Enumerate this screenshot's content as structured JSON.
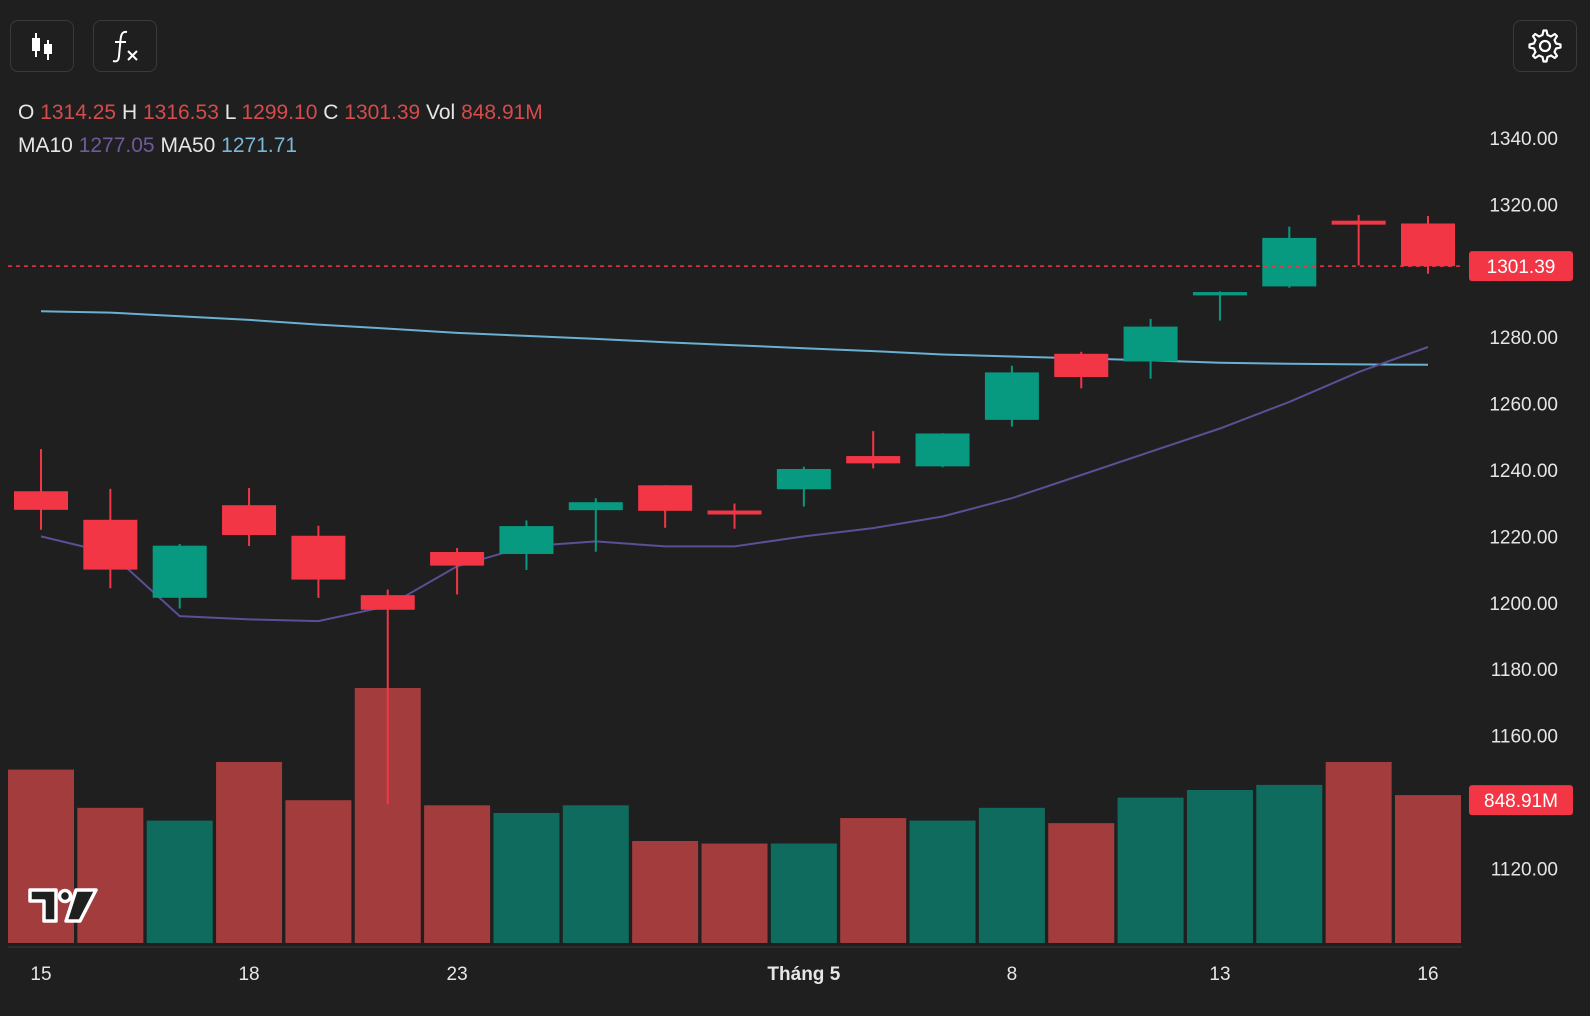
{
  "toolbar": {
    "candle_icon": "candlestick-icon",
    "fx_icon": "function-icon",
    "settings_icon": "gear-icon"
  },
  "legend": {
    "o_label": "O",
    "o_value": "1314.25",
    "h_label": "H",
    "h_value": "1316.53",
    "l_label": "L",
    "l_value": "1299.10",
    "c_label": "C",
    "c_value": "1301.39",
    "vol_label": "Vol",
    "vol_value": "848.91M",
    "ma10_label": "MA10",
    "ma10_value": "1277.05",
    "ma50_label": "MA50",
    "ma50_value": "1271.71"
  },
  "colors": {
    "background": "#1f1f1f",
    "up": "#089981",
    "down": "#f23645",
    "up_volume": "#0f6b5e",
    "down_volume": "#a33c3c",
    "ma10": "#5b4f96",
    "ma50": "#6ab0d2",
    "price_line": "#f23645",
    "axis_text": "#e6e6e6"
  },
  "chart_data": {
    "type": "candlestick",
    "y_axis_ticks": [
      "1340.00",
      "1320.00",
      "1280.00",
      "1260.00",
      "1240.00",
      "1220.00",
      "1200.00",
      "1180.00",
      "1160.00",
      "1120.00"
    ],
    "x_axis_ticks": [
      {
        "index": 0,
        "label": "15"
      },
      {
        "index": 3,
        "label": "18"
      },
      {
        "index": 6,
        "label": "23"
      },
      {
        "index": 11,
        "label": "Tháng 5"
      },
      {
        "index": 14,
        "label": "8"
      },
      {
        "index": 17,
        "label": "13"
      },
      {
        "index": 20,
        "label": "16"
      }
    ],
    "ylim": [
      1107,
      1349
    ],
    "candles": [
      {
        "o": 1233.6,
        "h": 1246.3,
        "l": 1222.0,
        "c": 1228.0
      },
      {
        "o": 1225.0,
        "h": 1234.3,
        "l": 1204.4,
        "c": 1210.0
      },
      {
        "o": 1201.5,
        "h": 1217.7,
        "l": 1198.3,
        "c": 1217.2
      },
      {
        "o": 1229.4,
        "h": 1234.6,
        "l": 1217.1,
        "c": 1220.4
      },
      {
        "o": 1220.2,
        "h": 1223.2,
        "l": 1201.5,
        "c": 1207.0
      },
      {
        "o": 1202.3,
        "h": 1204.0,
        "l": 1139.3,
        "c": 1197.9
      },
      {
        "o": 1215.3,
        "h": 1216.5,
        "l": 1202.5,
        "c": 1211.2
      },
      {
        "o": 1214.7,
        "h": 1224.8,
        "l": 1209.9,
        "c": 1223.1
      },
      {
        "o": 1227.9,
        "h": 1231.5,
        "l": 1215.4,
        "c": 1230.3
      },
      {
        "o": 1235.4,
        "h": 1235.4,
        "l": 1222.6,
        "c": 1227.7
      },
      {
        "o": 1227.8,
        "h": 1229.9,
        "l": 1222.3,
        "c": 1226.6
      },
      {
        "o": 1234.2,
        "h": 1241.0,
        "l": 1229.0,
        "c": 1240.3
      },
      {
        "o": 1244.2,
        "h": 1251.7,
        "l": 1240.5,
        "c": 1242.0
      },
      {
        "o": 1241.1,
        "h": 1251.1,
        "l": 1240.8,
        "c": 1251.0
      },
      {
        "o": 1255.1,
        "h": 1271.4,
        "l": 1253.1,
        "c": 1269.4
      },
      {
        "o": 1275.0,
        "h": 1275.6,
        "l": 1264.6,
        "c": 1268.0
      },
      {
        "o": 1272.7,
        "h": 1285.5,
        "l": 1267.5,
        "c": 1283.2
      },
      {
        "o": 1292.6,
        "h": 1293.8,
        "l": 1285.0,
        "c": 1293.6
      },
      {
        "o": 1295.3,
        "h": 1313.3,
        "l": 1294.9,
        "c": 1309.9
      },
      {
        "o": 1315.1,
        "h": 1316.8,
        "l": 1301.6,
        "c": 1313.9
      },
      {
        "o": 1314.25,
        "h": 1316.53,
        "l": 1299.1,
        "c": 1301.39
      }
    ],
    "volume_relative": [
      0.68,
      0.53,
      0.48,
      0.71,
      0.56,
      1.0,
      0.54,
      0.51,
      0.54,
      0.4,
      0.39,
      0.39,
      0.49,
      0.48,
      0.53,
      0.47,
      0.57,
      0.6,
      0.62,
      0.71,
      0.58
    ],
    "ma10": [
      1220.0,
      1215.0,
      1196.0,
      1195.0,
      1194.5,
      1199.0,
      1211.0,
      1217.0,
      1218.5,
      1217.0,
      1217.0,
      1220.0,
      1222.5,
      1226.0,
      1231.5,
      1238.5,
      1245.5,
      1252.5,
      1260.5,
      1269.5,
      1277.05
    ],
    "ma50": [
      1287.8,
      1287.4,
      1286.3,
      1285.2,
      1283.8,
      1282.6,
      1281.3,
      1280.4,
      1279.5,
      1278.5,
      1277.6,
      1276.7,
      1275.8,
      1274.8,
      1274.2,
      1273.6,
      1273.0,
      1272.3,
      1272.0,
      1271.8,
      1271.71
    ],
    "last_price": "1301.39",
    "last_volume": "848.91M"
  }
}
